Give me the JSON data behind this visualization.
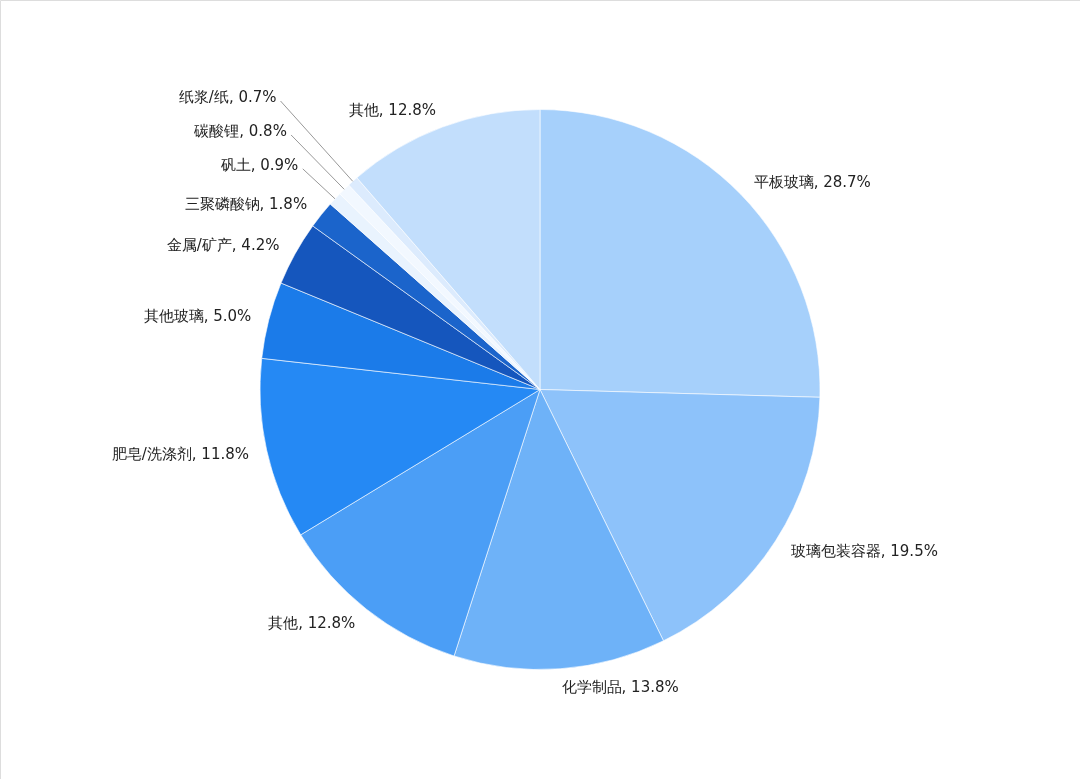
{
  "chart_data": {
    "type": "pie",
    "categories": [
      "平板玻璃",
      "玻璃包装容器",
      "化学制品",
      "其他",
      "肥皂/洗涤剂",
      "其他玻璃",
      "金属/矿产",
      "三聚磷酸钠",
      "矾土",
      "碳酸锂",
      "纸浆/纸",
      "其他"
    ],
    "values": [
      28.7,
      19.5,
      13.8,
      12.8,
      11.8,
      5.0,
      4.2,
      1.8,
      0.9,
      0.8,
      0.7,
      12.8
    ],
    "value_labels": [
      "28.7%",
      "19.5%",
      "13.8%",
      "12.8%",
      "11.8%",
      "5.0%",
      "4.2%",
      "1.8%",
      "0.9%",
      "0.8%",
      "0.7%",
      "12.8%"
    ],
    "colors": [
      "#a6d0fb",
      "#8dc2fa",
      "#6eb2f8",
      "#4b9ef6",
      "#2589f4",
      "#1b7be9",
      "#1556bd",
      "#1b64cb",
      "#e9f3fe",
      "#f2f8ff",
      "#dcebfd",
      "#c2defc"
    ]
  }
}
